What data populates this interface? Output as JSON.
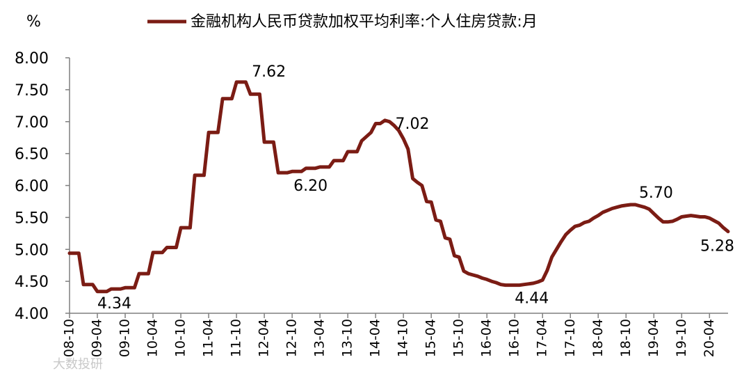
{
  "chart_data": {
    "type": "line",
    "unit_label": "%",
    "legend_position": "top",
    "series": [
      {
        "name": "金融机构人民币贷款加权平均利率:个人住房贷款:月",
        "color": "#7b1c14",
        "points": [
          [
            "08-10",
            4.94
          ],
          [
            "08-12",
            4.94
          ],
          [
            "09-01",
            4.45
          ],
          [
            "09-03",
            4.45
          ],
          [
            "09-04",
            4.34
          ],
          [
            "09-06",
            4.34
          ],
          [
            "09-07",
            4.38
          ],
          [
            "09-09",
            4.38
          ],
          [
            "09-10",
            4.4
          ],
          [
            "09-12",
            4.4
          ],
          [
            "10-01",
            4.62
          ],
          [
            "10-03",
            4.62
          ],
          [
            "10-04",
            4.95
          ],
          [
            "10-06",
            4.95
          ],
          [
            "10-07",
            5.03
          ],
          [
            "10-09",
            5.03
          ],
          [
            "10-10",
            5.34
          ],
          [
            "10-12",
            5.34
          ],
          [
            "11-01",
            6.16
          ],
          [
            "11-03",
            6.16
          ],
          [
            "11-04",
            6.83
          ],
          [
            "11-06",
            6.83
          ],
          [
            "11-07",
            7.36
          ],
          [
            "11-09",
            7.36
          ],
          [
            "11-10",
            7.62
          ],
          [
            "11-12",
            7.62
          ],
          [
            "12-01",
            7.43
          ],
          [
            "12-03",
            7.43
          ],
          [
            "12-04",
            6.68
          ],
          [
            "12-06",
            6.68
          ],
          [
            "12-07",
            6.2
          ],
          [
            "12-09",
            6.2
          ],
          [
            "12-10",
            6.22
          ],
          [
            "12-12",
            6.22
          ],
          [
            "13-01",
            6.27
          ],
          [
            "13-03",
            6.27
          ],
          [
            "13-04",
            6.29
          ],
          [
            "13-06",
            6.29
          ],
          [
            "13-07",
            6.39
          ],
          [
            "13-09",
            6.39
          ],
          [
            "13-10",
            6.53
          ],
          [
            "13-12",
            6.53
          ],
          [
            "14-01",
            6.7
          ],
          [
            "14-03",
            6.83
          ],
          [
            "14-04",
            6.97
          ],
          [
            "14-05",
            6.97
          ],
          [
            "14-06",
            7.02
          ],
          [
            "14-07",
            7.0
          ],
          [
            "14-08",
            6.94
          ],
          [
            "14-09",
            6.86
          ],
          [
            "14-10",
            6.73
          ],
          [
            "14-11",
            6.57
          ],
          [
            "14-12",
            6.11
          ],
          [
            "15-01",
            6.05
          ],
          [
            "15-02",
            6.0
          ],
          [
            "15-03",
            5.75
          ],
          [
            "15-04",
            5.74
          ],
          [
            "15-05",
            5.46
          ],
          [
            "15-06",
            5.44
          ],
          [
            "15-07",
            5.18
          ],
          [
            "15-08",
            5.16
          ],
          [
            "15-09",
            4.9
          ],
          [
            "15-10",
            4.88
          ],
          [
            "15-11",
            4.66
          ],
          [
            "15-12",
            4.62
          ],
          [
            "16-01",
            4.6
          ],
          [
            "16-02",
            4.58
          ],
          [
            "16-03",
            4.55
          ],
          [
            "16-04",
            4.53
          ],
          [
            "16-05",
            4.5
          ],
          [
            "16-06",
            4.48
          ],
          [
            "16-07",
            4.45
          ],
          [
            "16-08",
            4.44
          ],
          [
            "16-09",
            4.44
          ],
          [
            "16-10",
            4.44
          ],
          [
            "16-11",
            4.44
          ],
          [
            "16-12",
            4.45
          ],
          [
            "17-01",
            4.46
          ],
          [
            "17-02",
            4.47
          ],
          [
            "17-03",
            4.49
          ],
          [
            "17-04",
            4.52
          ],
          [
            "17-05",
            4.67
          ],
          [
            "17-06",
            4.88
          ],
          [
            "17-07",
            5.0
          ],
          [
            "17-08",
            5.12
          ],
          [
            "17-09",
            5.23
          ],
          [
            "17-10",
            5.3
          ],
          [
            "17-11",
            5.36
          ],
          [
            "17-12",
            5.38
          ],
          [
            "18-01",
            5.42
          ],
          [
            "18-02",
            5.44
          ],
          [
            "18-03",
            5.49
          ],
          [
            "18-04",
            5.53
          ],
          [
            "18-05",
            5.58
          ],
          [
            "18-06",
            5.61
          ],
          [
            "18-07",
            5.64
          ],
          [
            "18-08",
            5.66
          ],
          [
            "18-09",
            5.68
          ],
          [
            "18-10",
            5.69
          ],
          [
            "18-11",
            5.7
          ],
          [
            "18-12",
            5.7
          ],
          [
            "19-01",
            5.68
          ],
          [
            "19-02",
            5.66
          ],
          [
            "19-03",
            5.63
          ],
          [
            "19-04",
            5.56
          ],
          [
            "19-05",
            5.49
          ],
          [
            "19-06",
            5.43
          ],
          [
            "19-07",
            5.43
          ],
          [
            "19-08",
            5.44
          ],
          [
            "19-09",
            5.47
          ],
          [
            "19-10",
            5.51
          ],
          [
            "19-11",
            5.52
          ],
          [
            "19-12",
            5.53
          ],
          [
            "20-01",
            5.52
          ],
          [
            "20-02",
            5.51
          ],
          [
            "20-03",
            5.51
          ],
          [
            "20-04",
            5.49
          ],
          [
            "20-05",
            5.45
          ],
          [
            "20-06",
            5.41
          ],
          [
            "20-07",
            5.34
          ],
          [
            "20-08",
            5.28
          ]
        ]
      }
    ],
    "x_ticks": [
      "08-10",
      "09-04",
      "09-10",
      "10-04",
      "10-10",
      "11-04",
      "11-10",
      "12-04",
      "12-10",
      "13-04",
      "13-10",
      "14-04",
      "14-10",
      "15-04",
      "15-10",
      "16-04",
      "16-10",
      "17-04",
      "17-10",
      "18-04",
      "18-10",
      "19-04",
      "19-10",
      "20-04"
    ],
    "y_ticks": [
      "4.00",
      "4.50",
      "5.00",
      "5.50",
      "6.00",
      "6.50",
      "7.00",
      "7.50",
      "8.00"
    ],
    "ylim": [
      4.0,
      8.0
    ],
    "grid": false,
    "annotations": [
      {
        "at": "09-04",
        "value": 4.34,
        "text": "4.34"
      },
      {
        "at": "11-10",
        "value": 7.62,
        "text": "7.62"
      },
      {
        "at": "12-07",
        "value": 6.2,
        "text": "6.20"
      },
      {
        "at": "14-06",
        "value": 7.02,
        "text": "7.02"
      },
      {
        "at": "16-10",
        "value": 4.44,
        "text": "4.44"
      },
      {
        "at": "18-11",
        "value": 5.7,
        "text": "5.70"
      },
      {
        "at": "20-08",
        "value": 5.28,
        "text": "5.28"
      }
    ]
  },
  "watermark": {
    "text": "大数投研"
  }
}
